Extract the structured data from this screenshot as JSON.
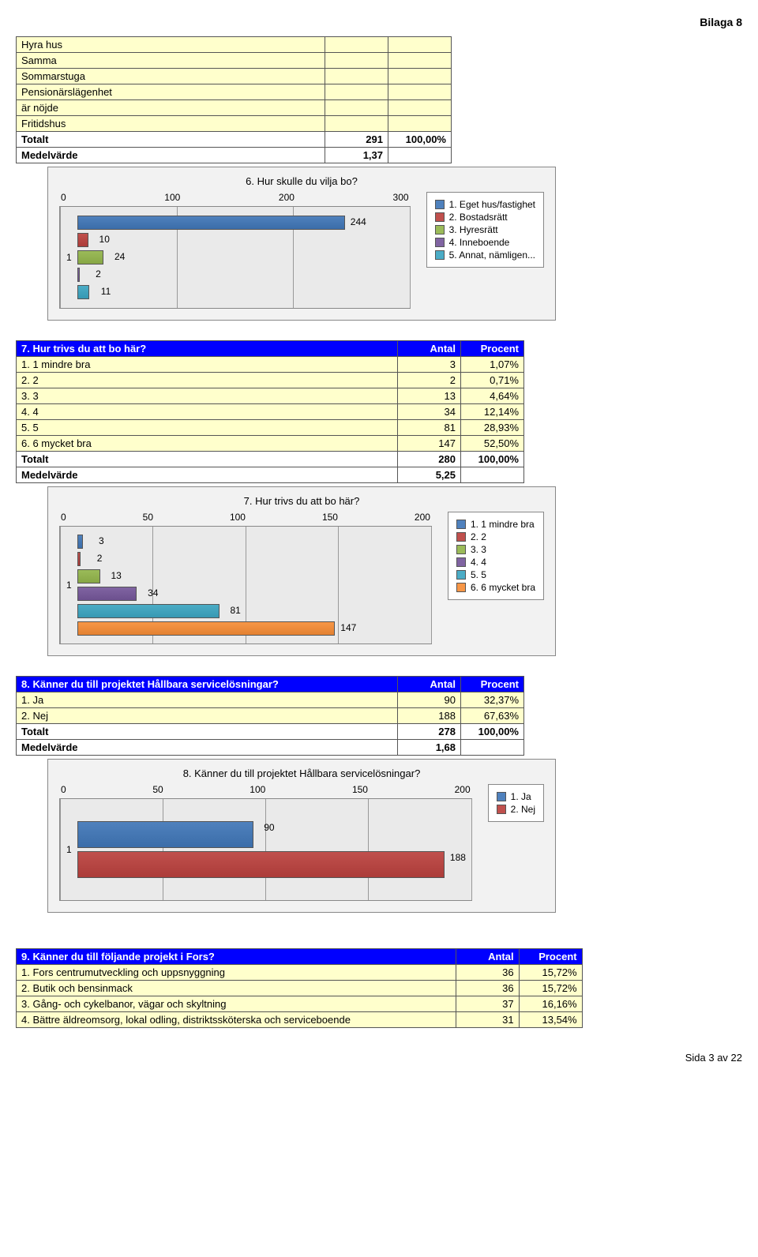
{
  "page_corner": "Bilaga 8",
  "footer": "Sida 3 av 22",
  "intro_table": {
    "rows": [
      "Hyra hus",
      "Samma",
      "Sommarstuga",
      "Pensionärslägenhet",
      "är nöjde",
      "Fritidshus"
    ],
    "total_label": "Totalt",
    "total_antal": "291",
    "total_procent": "100,00%",
    "mean_label": "Medelvärde",
    "mean_value": "1,37"
  },
  "chart6": {
    "title": "6. Hur skulle du vilja bo?",
    "axis_max": 300,
    "axis_ticks": [
      "0",
      "100",
      "200",
      "300"
    ],
    "ylabel": "1",
    "bars": [
      {
        "value": 244,
        "color": "#4f81bd",
        "label": "244"
      },
      {
        "value": 10,
        "color": "#c0504d",
        "label": "10"
      },
      {
        "value": 24,
        "color": "#9bbb59",
        "label": "24"
      },
      {
        "value": 2,
        "color": "#8064a2",
        "label": "2"
      },
      {
        "value": 11,
        "color": "#4bacc6",
        "label": "11"
      }
    ],
    "legend": [
      {
        "text": "1. Eget hus/fastighet",
        "color": "#4f81bd"
      },
      {
        "text": "2. Bostadsrätt",
        "color": "#c0504d"
      },
      {
        "text": "3. Hyresrätt",
        "color": "#9bbb59"
      },
      {
        "text": "4. Inneboende",
        "color": "#8064a2"
      },
      {
        "text": "5. Annat, nämligen...",
        "color": "#4bacc6"
      }
    ]
  },
  "q7": {
    "question": "7. Hur trivs du att bo här?",
    "header_antal": "Antal",
    "header_procent": "Procent",
    "rows": [
      {
        "label": "1. 1 mindre bra",
        "antal": "3",
        "procent": "1,07%"
      },
      {
        "label": "2. 2",
        "antal": "2",
        "procent": "0,71%"
      },
      {
        "label": "3. 3",
        "antal": "13",
        "procent": "4,64%"
      },
      {
        "label": "4. 4",
        "antal": "34",
        "procent": "12,14%"
      },
      {
        "label": "5. 5",
        "antal": "81",
        "procent": "28,93%"
      },
      {
        "label": "6. 6 mycket bra",
        "antal": "147",
        "procent": "52,50%"
      }
    ],
    "total_label": "Totalt",
    "total_antal": "280",
    "total_procent": "100,00%",
    "mean_label": "Medelvärde",
    "mean_value": "5,25"
  },
  "chart7": {
    "title": "7. Hur trivs du att bo här?",
    "axis_max": 200,
    "axis_ticks": [
      "0",
      "50",
      "100",
      "150",
      "200"
    ],
    "ylabel": "1",
    "bars": [
      {
        "value": 3,
        "color": "#4f81bd",
        "label": "3"
      },
      {
        "value": 2,
        "color": "#c0504d",
        "label": "2"
      },
      {
        "value": 13,
        "color": "#9bbb59",
        "label": "13"
      },
      {
        "value": 34,
        "color": "#8064a2",
        "label": "34"
      },
      {
        "value": 81,
        "color": "#4bacc6",
        "label": "81"
      },
      {
        "value": 147,
        "color": "#f79646",
        "label": "147"
      }
    ],
    "legend": [
      {
        "text": "1. 1 mindre bra",
        "color": "#4f81bd"
      },
      {
        "text": "2. 2",
        "color": "#c0504d"
      },
      {
        "text": "3. 3",
        "color": "#9bbb59"
      },
      {
        "text": "4. 4",
        "color": "#8064a2"
      },
      {
        "text": "5. 5",
        "color": "#4bacc6"
      },
      {
        "text": "6. 6 mycket bra",
        "color": "#f79646"
      }
    ]
  },
  "q8": {
    "question": "8. Känner du till projektet Hållbara servicelösningar?",
    "header_antal": "Antal",
    "header_procent": "Procent",
    "rows": [
      {
        "label": "1. Ja",
        "antal": "90",
        "procent": "32,37%"
      },
      {
        "label": "2. Nej",
        "antal": "188",
        "procent": "67,63%"
      }
    ],
    "total_label": "Totalt",
    "total_antal": "278",
    "total_procent": "100,00%",
    "mean_label": "Medelvärde",
    "mean_value": "1,68"
  },
  "chart8": {
    "title": "8. Känner du till projektet Hållbara servicelösningar?",
    "axis_max": 200,
    "axis_ticks": [
      "0",
      "50",
      "100",
      "150",
      "200"
    ],
    "ylabel": "1",
    "bars": [
      {
        "value": 90,
        "color": "#4f81bd",
        "label": "90"
      },
      {
        "value": 188,
        "color": "#c0504d",
        "label": "188"
      }
    ],
    "legend": [
      {
        "text": "1. Ja",
        "color": "#4f81bd"
      },
      {
        "text": "2. Nej",
        "color": "#c0504d"
      }
    ]
  },
  "q9": {
    "question": "9. Känner du till följande projekt i Fors?",
    "header_antal": "Antal",
    "header_procent": "Procent",
    "rows": [
      {
        "label": "1. Fors centrumutveckling och uppsnyggning",
        "antal": "36",
        "procent": "15,72%"
      },
      {
        "label": "2. Butik och bensinmack",
        "antal": "36",
        "procent": "15,72%"
      },
      {
        "label": "3. Gång- och cykelbanor, vägar och skyltning",
        "antal": "37",
        "procent": "16,16%"
      },
      {
        "label": "4. Bättre äldreomsorg, lokal odling, distriktssköterska och serviceboende",
        "antal": "31",
        "procent": "13,54%"
      }
    ]
  }
}
